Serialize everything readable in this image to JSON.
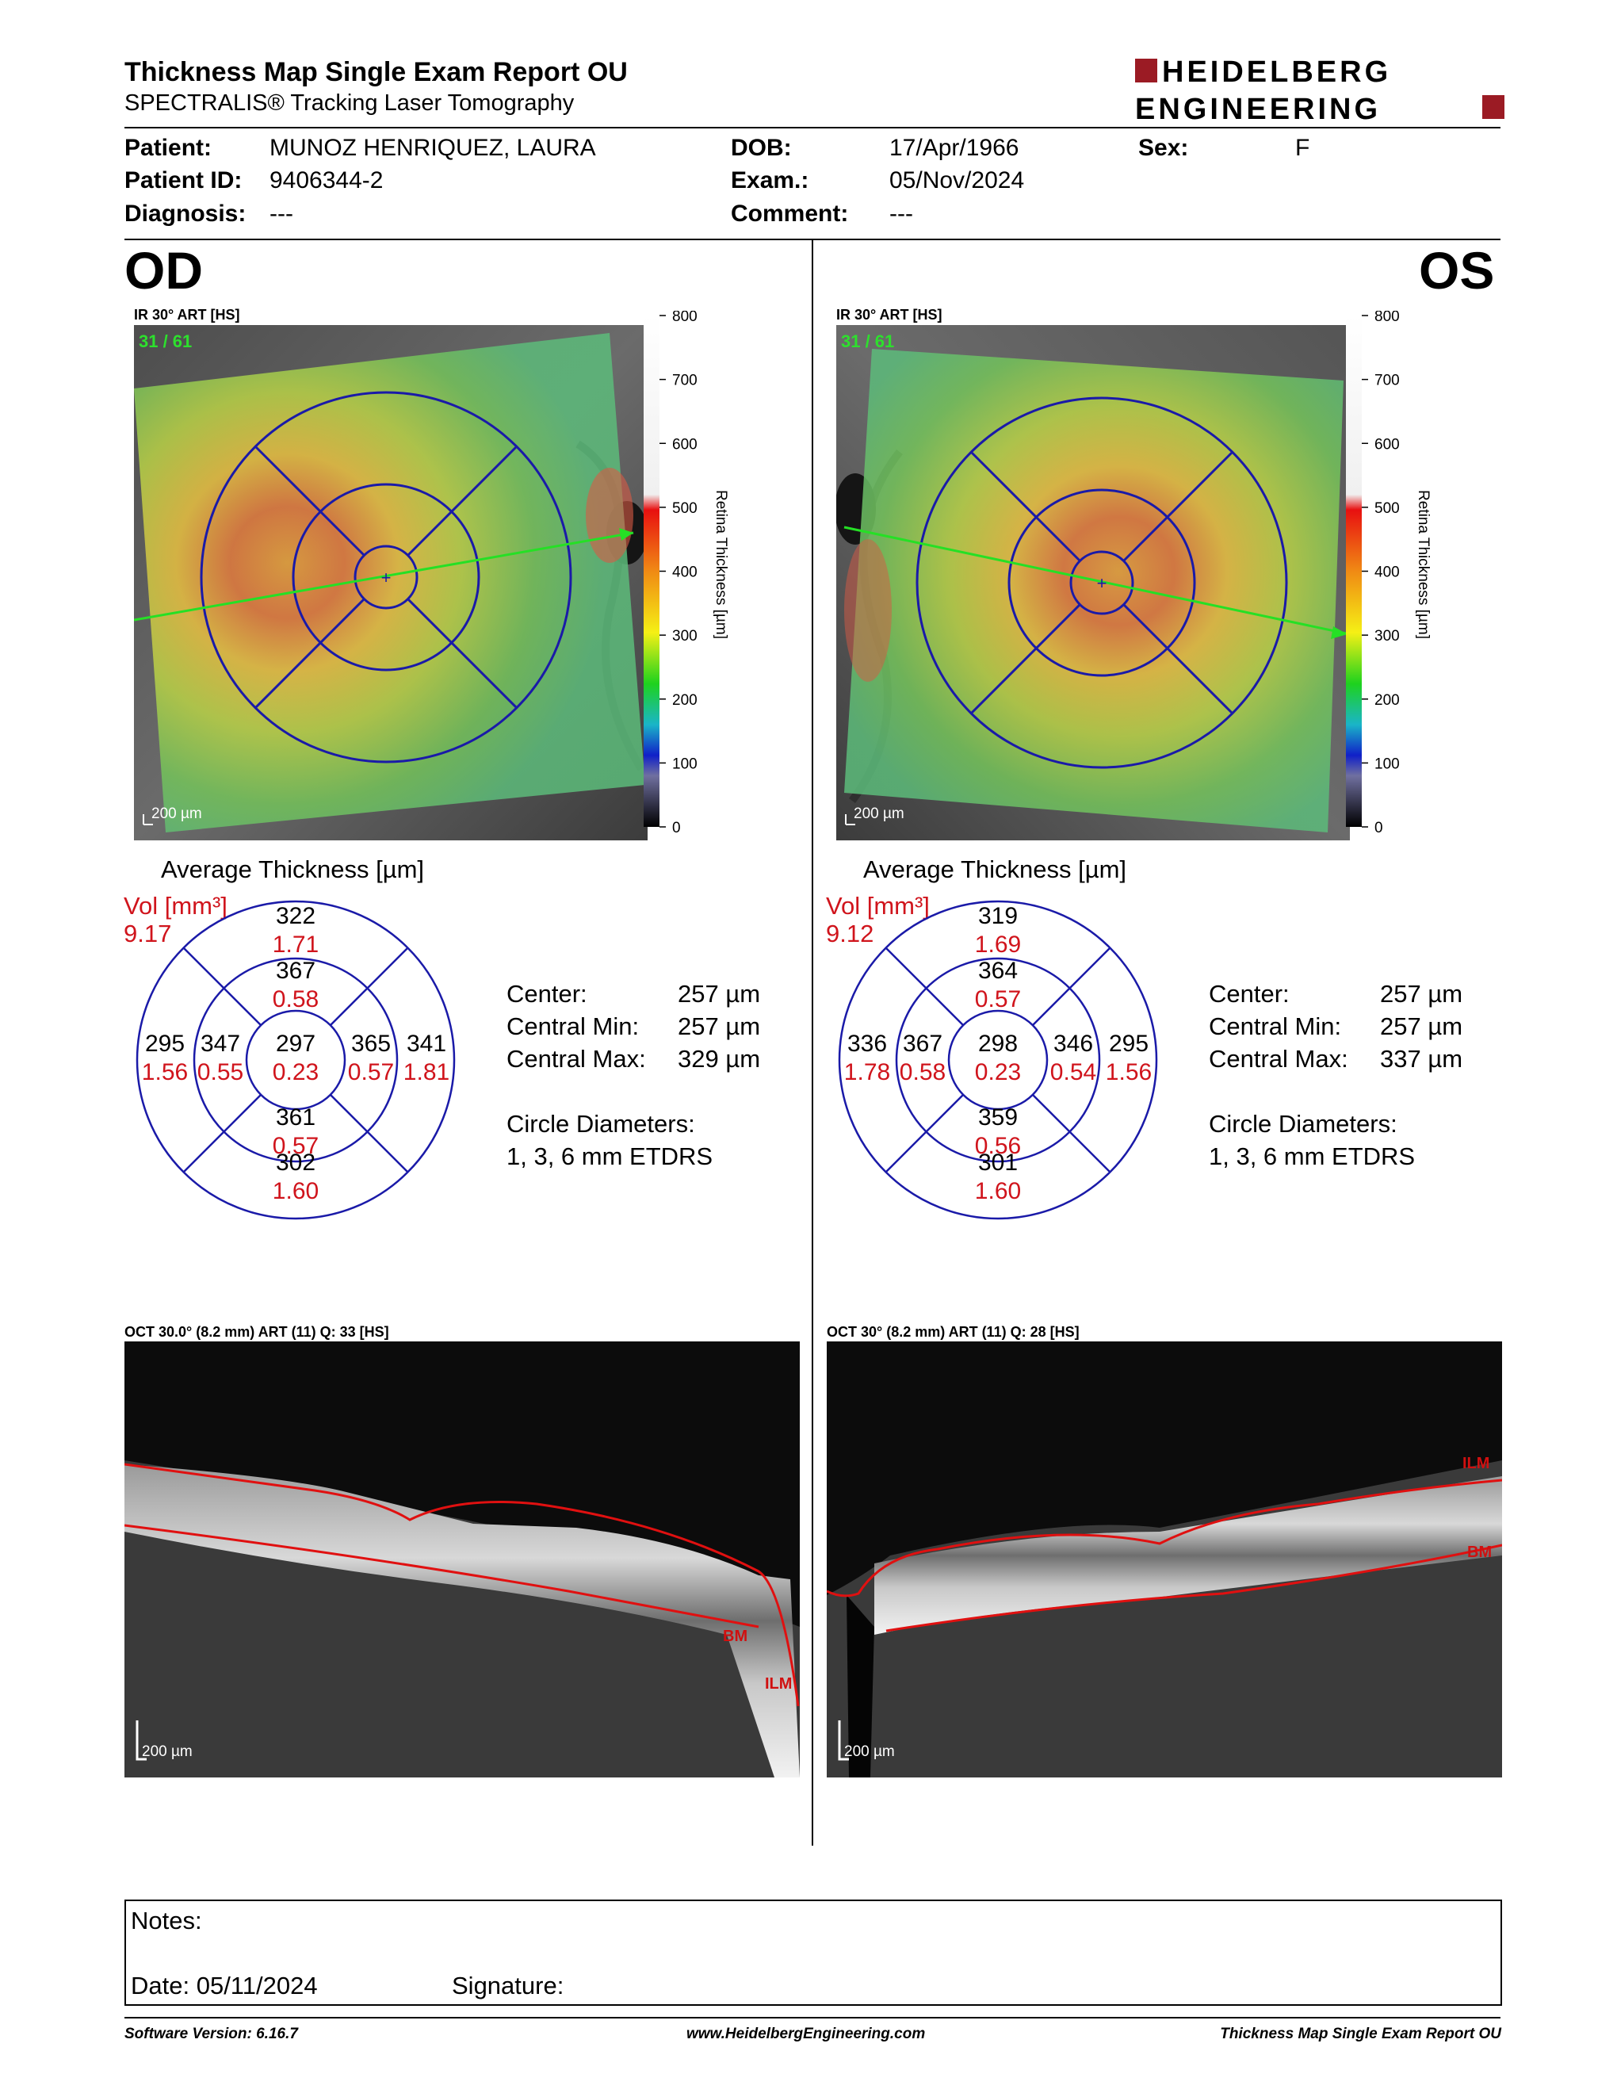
{
  "header": {
    "title": "Thickness Map Single Exam Report OU",
    "subtitle": "SPECTRALIS® Tracking Laser Tomography",
    "logo_line1": "HEIDELBERG",
    "logo_line2": "ENGINEERING",
    "brand_color": "#9B1B24"
  },
  "patient": {
    "patient_label": "Patient:",
    "patient_value": "MUNOZ HENRIQUEZ, LAURA",
    "id_label": "Patient ID:",
    "id_value": "9406344-2",
    "diagnosis_label": "Diagnosis:",
    "diagnosis_value": "---",
    "dob_label": "DOB:",
    "dob_value": "17/Apr/1966",
    "exam_label": "Exam.:",
    "exam_value": "05/Nov/2024",
    "comment_label": "Comment:",
    "comment_value": "---",
    "sex_label": "Sex:",
    "sex_value": "F"
  },
  "scale": {
    "ticks": [
      "800",
      "700",
      "600",
      "500",
      "400",
      "300",
      "200",
      "100",
      "0"
    ],
    "label": "Retina Thickness [µm]"
  },
  "od": {
    "eye": "OD",
    "ir_caption": "IR 30° ART [HS]",
    "frame": "31 / 61",
    "scale_bar": "200 µm",
    "avg_title": "Average Thickness [µm]",
    "vol_label": "Vol [mm³]",
    "vol_value": "9.17",
    "sectors": {
      "outer_top": [
        "322",
        "1.71"
      ],
      "inner_top": [
        "367",
        "0.58"
      ],
      "outer_left": [
        "295",
        "1.56"
      ],
      "inner_left": [
        "347",
        "0.55"
      ],
      "center": [
        "297",
        "0.23"
      ],
      "inner_right": [
        "365",
        "0.57"
      ],
      "outer_right": [
        "341",
        "1.81"
      ],
      "inner_bottom": [
        "361",
        "0.57"
      ],
      "outer_bottom": [
        "302",
        "1.60"
      ]
    },
    "stats": {
      "center_label": "Center:",
      "center_value": "257 µm",
      "min_label": "Central Min:",
      "min_value": "257 µm",
      "max_label": "Central Max:",
      "max_value": "329 µm",
      "circ_label": "Circle Diameters:",
      "circ_value": "1, 3, 6 mm ETDRS"
    },
    "oct_caption": "OCT 30.0° (8.2 mm) ART (11) Q: 33 [HS]",
    "oct_scale": "200 µm",
    "oct_labels": [
      "BM",
      "ILM"
    ]
  },
  "os": {
    "eye": "OS",
    "ir_caption": "IR 30° ART [HS]",
    "frame": "31 / 61",
    "scale_bar": "200 µm",
    "avg_title": "Average Thickness [µm]",
    "vol_label": "Vol [mm³]",
    "vol_value": "9.12",
    "sectors": {
      "outer_top": [
        "319",
        "1.69"
      ],
      "inner_top": [
        "364",
        "0.57"
      ],
      "outer_left": [
        "336",
        "1.78"
      ],
      "inner_left": [
        "367",
        "0.58"
      ],
      "center": [
        "298",
        "0.23"
      ],
      "inner_right": [
        "346",
        "0.54"
      ],
      "outer_right": [
        "295",
        "1.56"
      ],
      "inner_bottom": [
        "359",
        "0.56"
      ],
      "outer_bottom": [
        "301",
        "1.60"
      ]
    },
    "stats": {
      "center_label": "Center:",
      "center_value": "257 µm",
      "min_label": "Central Min:",
      "min_value": "257 µm",
      "max_label": "Central Max:",
      "max_value": "337 µm",
      "circ_label": "Circle Diameters:",
      "circ_value": "1, 3, 6 mm ETDRS"
    },
    "oct_caption": "OCT 30° (8.2 mm) ART (11) Q: 28 [HS]",
    "oct_scale": "200 µm",
    "oct_labels": [
      "ILM",
      "BM"
    ]
  },
  "notes": {
    "notes_label": "Notes:",
    "date_label": "Date: 05/11/2024",
    "signature_label": "Signature:"
  },
  "footer": {
    "software": "Software Version: 6.16.7",
    "website": "www.HeidelbergEngineering.com",
    "report": "Thickness Map Single Exam Report OU"
  }
}
